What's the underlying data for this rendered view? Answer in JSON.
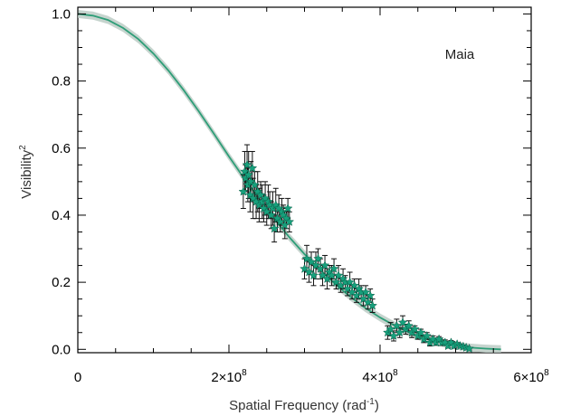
{
  "chart_data": {
    "type": "scatter",
    "annotation": "Maia",
    "xlabel": {
      "text": "Spatial Frequency (rad",
      "sup": "-1",
      "tail": ")"
    },
    "ylabel": {
      "text": "Visibility",
      "sup": "2"
    },
    "xlim": [
      0,
      600000000
    ],
    "ylim": [
      -0.01,
      1.02
    ],
    "x_ticks": [
      {
        "value": 0,
        "label": "0",
        "sup": ""
      },
      {
        "value": 200000000,
        "label": "2×10",
        "sup": "8"
      },
      {
        "value": 400000000,
        "label": "4×10",
        "sup": "8"
      },
      {
        "value": 600000000,
        "label": "6×10",
        "sup": "8"
      }
    ],
    "y_ticks": [
      {
        "value": 0.0,
        "label": "0.0"
      },
      {
        "value": 0.2,
        "label": "0.2"
      },
      {
        "value": 0.4,
        "label": "0.4"
      },
      {
        "value": 0.6,
        "label": "0.6"
      },
      {
        "value": 0.8,
        "label": "0.8"
      },
      {
        "value": 1.0,
        "label": "1.0"
      }
    ],
    "grid": false,
    "colors": {
      "model_line": "#2e9e78",
      "model_band": "#b8c9c2",
      "marker": "#17a07c",
      "error_bar": "#111111"
    },
    "model_curve": {
      "x": [
        0,
        20000000,
        40000000,
        60000000,
        80000000,
        100000000,
        120000000,
        140000000,
        160000000,
        180000000,
        200000000,
        220000000,
        240000000,
        260000000,
        280000000,
        300000000,
        320000000,
        340000000,
        360000000,
        380000000,
        400000000,
        420000000,
        440000000,
        460000000,
        480000000,
        500000000,
        520000000,
        540000000,
        560000000
      ],
      "y": [
        1.0,
        0.995,
        0.982,
        0.958,
        0.925,
        0.882,
        0.831,
        0.773,
        0.71,
        0.643,
        0.575,
        0.51,
        0.447,
        0.389,
        0.334,
        0.284,
        0.238,
        0.196,
        0.158,
        0.124,
        0.095,
        0.07,
        0.049,
        0.032,
        0.02,
        0.011,
        0.005,
        0.002,
        0.0
      ],
      "band_halfwidth": 0.012
    },
    "series": [
      {
        "x": [
          219000000,
          221000000,
          222000000,
          224000000,
          225000000,
          226000000,
          228000000,
          229000000,
          231000000,
          232000000,
          234000000,
          236000000,
          238000000,
          240000000,
          242000000,
          244000000,
          246000000,
          248000000,
          250000000,
          252000000,
          254000000,
          256000000,
          258000000,
          260000000,
          262000000,
          264000000,
          266000000,
          268000000,
          270000000,
          272000000,
          274000000,
          276000000,
          278000000,
          280000000,
          300000000,
          303000000,
          306000000,
          309000000,
          312000000,
          315000000,
          318000000,
          321000000,
          324000000,
          327000000,
          330000000,
          333000000,
          336000000,
          339000000,
          342000000,
          345000000,
          348000000,
          351000000,
          354000000,
          357000000,
          360000000,
          363000000,
          366000000,
          369000000,
          372000000,
          375000000,
          378000000,
          381000000,
          384000000,
          387000000,
          390000000,
          410000000,
          414000000,
          418000000,
          422000000,
          426000000,
          430000000,
          434000000,
          438000000,
          442000000,
          446000000,
          450000000,
          454000000,
          458000000,
          462000000,
          466000000,
          470000000,
          474000000,
          478000000,
          482000000,
          486000000,
          490000000,
          494000000,
          498000000,
          502000000,
          506000000,
          510000000,
          514000000,
          518000000
        ],
        "y": [
          0.47,
          0.53,
          0.51,
          0.55,
          0.49,
          0.52,
          0.46,
          0.5,
          0.54,
          0.45,
          0.49,
          0.44,
          0.47,
          0.43,
          0.46,
          0.44,
          0.42,
          0.45,
          0.41,
          0.44,
          0.43,
          0.4,
          0.42,
          0.36,
          0.43,
          0.39,
          0.42,
          0.38,
          0.41,
          0.4,
          0.37,
          0.39,
          0.42,
          0.38,
          0.24,
          0.27,
          0.23,
          0.26,
          0.22,
          0.25,
          0.27,
          0.24,
          0.22,
          0.25,
          0.21,
          0.23,
          0.22,
          0.24,
          0.2,
          0.22,
          0.19,
          0.21,
          0.2,
          0.18,
          0.2,
          0.17,
          0.19,
          0.16,
          0.18,
          0.17,
          0.15,
          0.17,
          0.14,
          0.16,
          0.13,
          0.05,
          0.06,
          0.04,
          0.07,
          0.05,
          0.08,
          0.06,
          0.07,
          0.05,
          0.06,
          0.04,
          0.05,
          0.03,
          0.04,
          0.02,
          0.03,
          0.02,
          0.03,
          0.02,
          0.02,
          0.01,
          0.02,
          0.01,
          0.015,
          0.01,
          0.008,
          0.005,
          0.002
        ],
        "yerr": [
          0.05,
          0.06,
          0.04,
          0.06,
          0.05,
          0.07,
          0.05,
          0.06,
          0.05,
          0.06,
          0.04,
          0.05,
          0.06,
          0.05,
          0.04,
          0.05,
          0.04,
          0.05,
          0.04,
          0.05,
          0.04,
          0.04,
          0.05,
          0.04,
          0.05,
          0.04,
          0.04,
          0.03,
          0.04,
          0.03,
          0.04,
          0.03,
          0.03,
          0.03,
          0.03,
          0.04,
          0.03,
          0.03,
          0.03,
          0.04,
          0.03,
          0.03,
          0.03,
          0.03,
          0.03,
          0.02,
          0.03,
          0.03,
          0.02,
          0.03,
          0.02,
          0.03,
          0.02,
          0.02,
          0.03,
          0.02,
          0.02,
          0.02,
          0.03,
          0.02,
          0.02,
          0.02,
          0.02,
          0.02,
          0.02,
          0.02,
          0.02,
          0.015,
          0.02,
          0.015,
          0.02,
          0.015,
          0.015,
          0.015,
          0.01,
          0.01,
          0.01,
          0.01,
          0.01,
          0.01,
          0.01,
          0.008,
          0.008,
          0.008,
          0.008,
          0.006,
          0.006,
          0.006,
          0.005,
          0.005,
          0.005,
          0.004,
          0.004
        ]
      }
    ]
  }
}
